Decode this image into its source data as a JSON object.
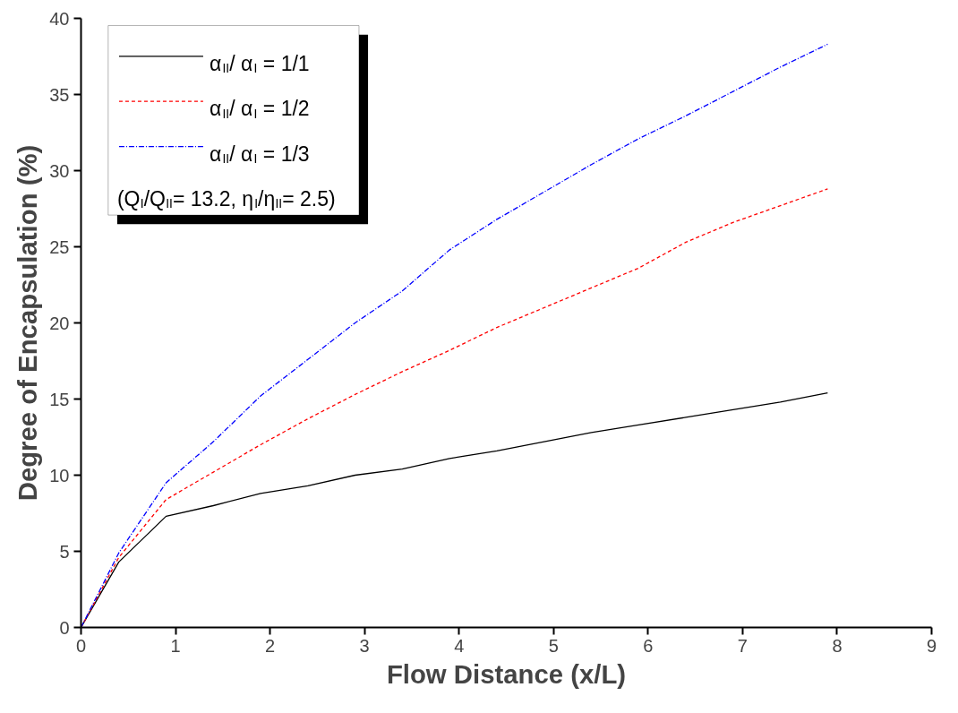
{
  "chart_data": {
    "type": "line",
    "xlabel": "Flow Distance (x/L)",
    "ylabel": "Degree of Encapsulation (%)",
    "x": [
      0,
      0.4,
      0.9,
      1.4,
      1.9,
      2.4,
      2.9,
      3.4,
      3.9,
      4.4,
      4.9,
      5.4,
      5.9,
      6.4,
      6.9,
      7.4,
      7.9
    ],
    "series": [
      {
        "name": "α$_{II}$/ α$_{I}$ = 1/1",
        "color": "#000000",
        "line_style": "solid",
        "values": [
          0,
          4.3,
          7.3,
          8.0,
          8.8,
          9.3,
          10.0,
          10.4,
          11.1,
          11.6,
          12.2,
          12.8,
          13.3,
          13.8,
          14.3,
          14.8,
          15.4
        ]
      },
      {
        "name": "α$_{II}$/ α$_{I}$ = 1/2",
        "color": "#ff0000",
        "line_style": "dashed",
        "values": [
          0,
          4.6,
          8.4,
          10.2,
          12.0,
          13.7,
          15.3,
          16.8,
          18.2,
          19.7,
          21.0,
          22.3,
          23.6,
          25.3,
          26.6,
          27.7,
          28.8
        ]
      },
      {
        "name": "α$_{II}$/ α$_{I}$ = 1/3",
        "color": "#0000ff",
        "line_style": "dashdot",
        "values": [
          0,
          4.9,
          9.5,
          12.2,
          15.2,
          17.6,
          20.0,
          22.1,
          24.8,
          26.8,
          28.6,
          30.4,
          32.1,
          33.6,
          35.2,
          36.8,
          38.3
        ]
      }
    ],
    "annotations": [
      "(Q$_{I}$/Q$_{II}$= 13.2, η$_{I}$/η$_{II}$= 2.5)"
    ],
    "xlim": [
      0,
      9
    ],
    "xticks": [
      0,
      1,
      2,
      3,
      4,
      5,
      6,
      7,
      8,
      9
    ],
    "ylim": [
      0,
      40
    ],
    "yticks": [
      0,
      5,
      10,
      15,
      20,
      25,
      30,
      35,
      40
    ],
    "legend": "top left",
    "grid": false
  }
}
